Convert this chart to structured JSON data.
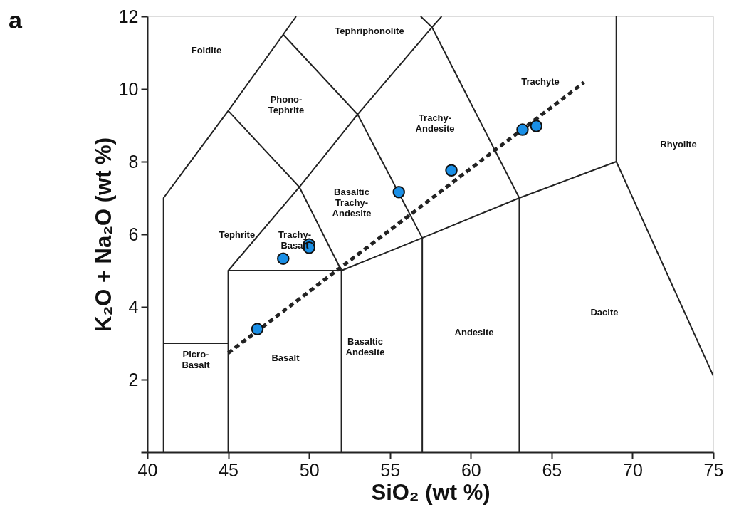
{
  "chart_data": {
    "type": "scatter",
    "xlabel": "SiO₂ (wt %)",
    "ylabel": "K₂O + Na₂O (wt %)",
    "xlim": [
      40,
      75
    ],
    "ylim": [
      0,
      12
    ],
    "xticks": [
      40,
      45,
      50,
      55,
      60,
      65,
      70,
      75
    ],
    "yticks": [
      {
        "value": 0,
        "label": null
      },
      2,
      4,
      6,
      8,
      10,
      12
    ],
    "grid": false,
    "series": [
      {
        "type": "line",
        "color": "#222222",
        "line_style": "solid",
        "marker": "none",
        "x": [
          41,
          41,
          45,
          48.4,
          49.2
        ],
        "values": [
          0,
          7,
          9.4,
          11.5,
          12
        ]
      },
      {
        "type": "line",
        "color": "#222222",
        "line_style": "solid",
        "marker": "none",
        "x": [
          41,
          45
        ],
        "values": [
          3,
          3
        ]
      },
      {
        "type": "line",
        "color": "#222222",
        "line_style": "solid",
        "marker": "none",
        "x": [
          45,
          45,
          49.4,
          53,
          57.6,
          58.2
        ],
        "values": [
          0,
          5,
          7.3,
          9.3,
          11.7,
          12
        ]
      },
      {
        "type": "line",
        "color": "#222222",
        "line_style": "solid",
        "marker": "none",
        "x": [
          45,
          52,
          57,
          63,
          69,
          75
        ],
        "values": [
          5,
          5,
          5.9,
          7,
          8,
          2.1
        ]
      },
      {
        "type": "line",
        "color": "#222222",
        "line_style": "solid",
        "marker": "none",
        "x": [
          52,
          52
        ],
        "values": [
          0,
          5
        ]
      },
      {
        "type": "line",
        "color": "#222222",
        "line_style": "solid",
        "marker": "none",
        "x": [
          57,
          57
        ],
        "values": [
          0,
          5.9
        ]
      },
      {
        "type": "line",
        "color": "#222222",
        "line_style": "solid",
        "marker": "none",
        "x": [
          63,
          63
        ],
        "values": [
          0,
          7
        ]
      },
      {
        "type": "line",
        "color": "#222222",
        "line_style": "solid",
        "marker": "none",
        "x": [
          69,
          69
        ],
        "values": [
          8,
          12
        ]
      },
      {
        "type": "line",
        "color": "#222222",
        "line_style": "solid",
        "marker": "none",
        "x": [
          45,
          49.4,
          52
        ],
        "values": [
          9.4,
          7.3,
          5
        ]
      },
      {
        "type": "line",
        "color": "#222222",
        "line_style": "solid",
        "marker": "none",
        "x": [
          48.4,
          53,
          57
        ],
        "values": [
          11.5,
          9.3,
          5.9
        ]
      },
      {
        "type": "line",
        "color": "#222222",
        "line_style": "solid",
        "marker": "none",
        "x": [
          56.9,
          57.6,
          63
        ],
        "values": [
          12,
          11.7,
          7
        ]
      },
      {
        "type": "line",
        "color": "#222222",
        "line_style": "dashed",
        "marker": "none",
        "x": [
          45.0,
          67.0
        ],
        "values": [
          2.73,
          10.18
        ]
      },
      {
        "color": "#1a8fe6",
        "marker": "circle",
        "x": [
          46.8,
          48.4,
          50.0,
          50.0,
          55.55,
          58.8,
          63.2,
          64.05
        ],
        "values": [
          3.39,
          5.33,
          5.72,
          5.63,
          7.16,
          7.76,
          8.88,
          8.98
        ]
      }
    ],
    "annotations": [
      "a",
      "Foidite",
      "Tephriphonolite",
      "Phono-\nTephrite",
      "Tephrite",
      "Trachy-\nBasalt",
      "Basaltic\nTrachy-\nAndesite",
      "Trachy-\nAndesite",
      "Trachyte",
      "Rhyolite",
      "Picro-\nBasalt",
      "Basalt",
      "Basaltic\nAndesite",
      "Andesite",
      "Dacite"
    ]
  }
}
